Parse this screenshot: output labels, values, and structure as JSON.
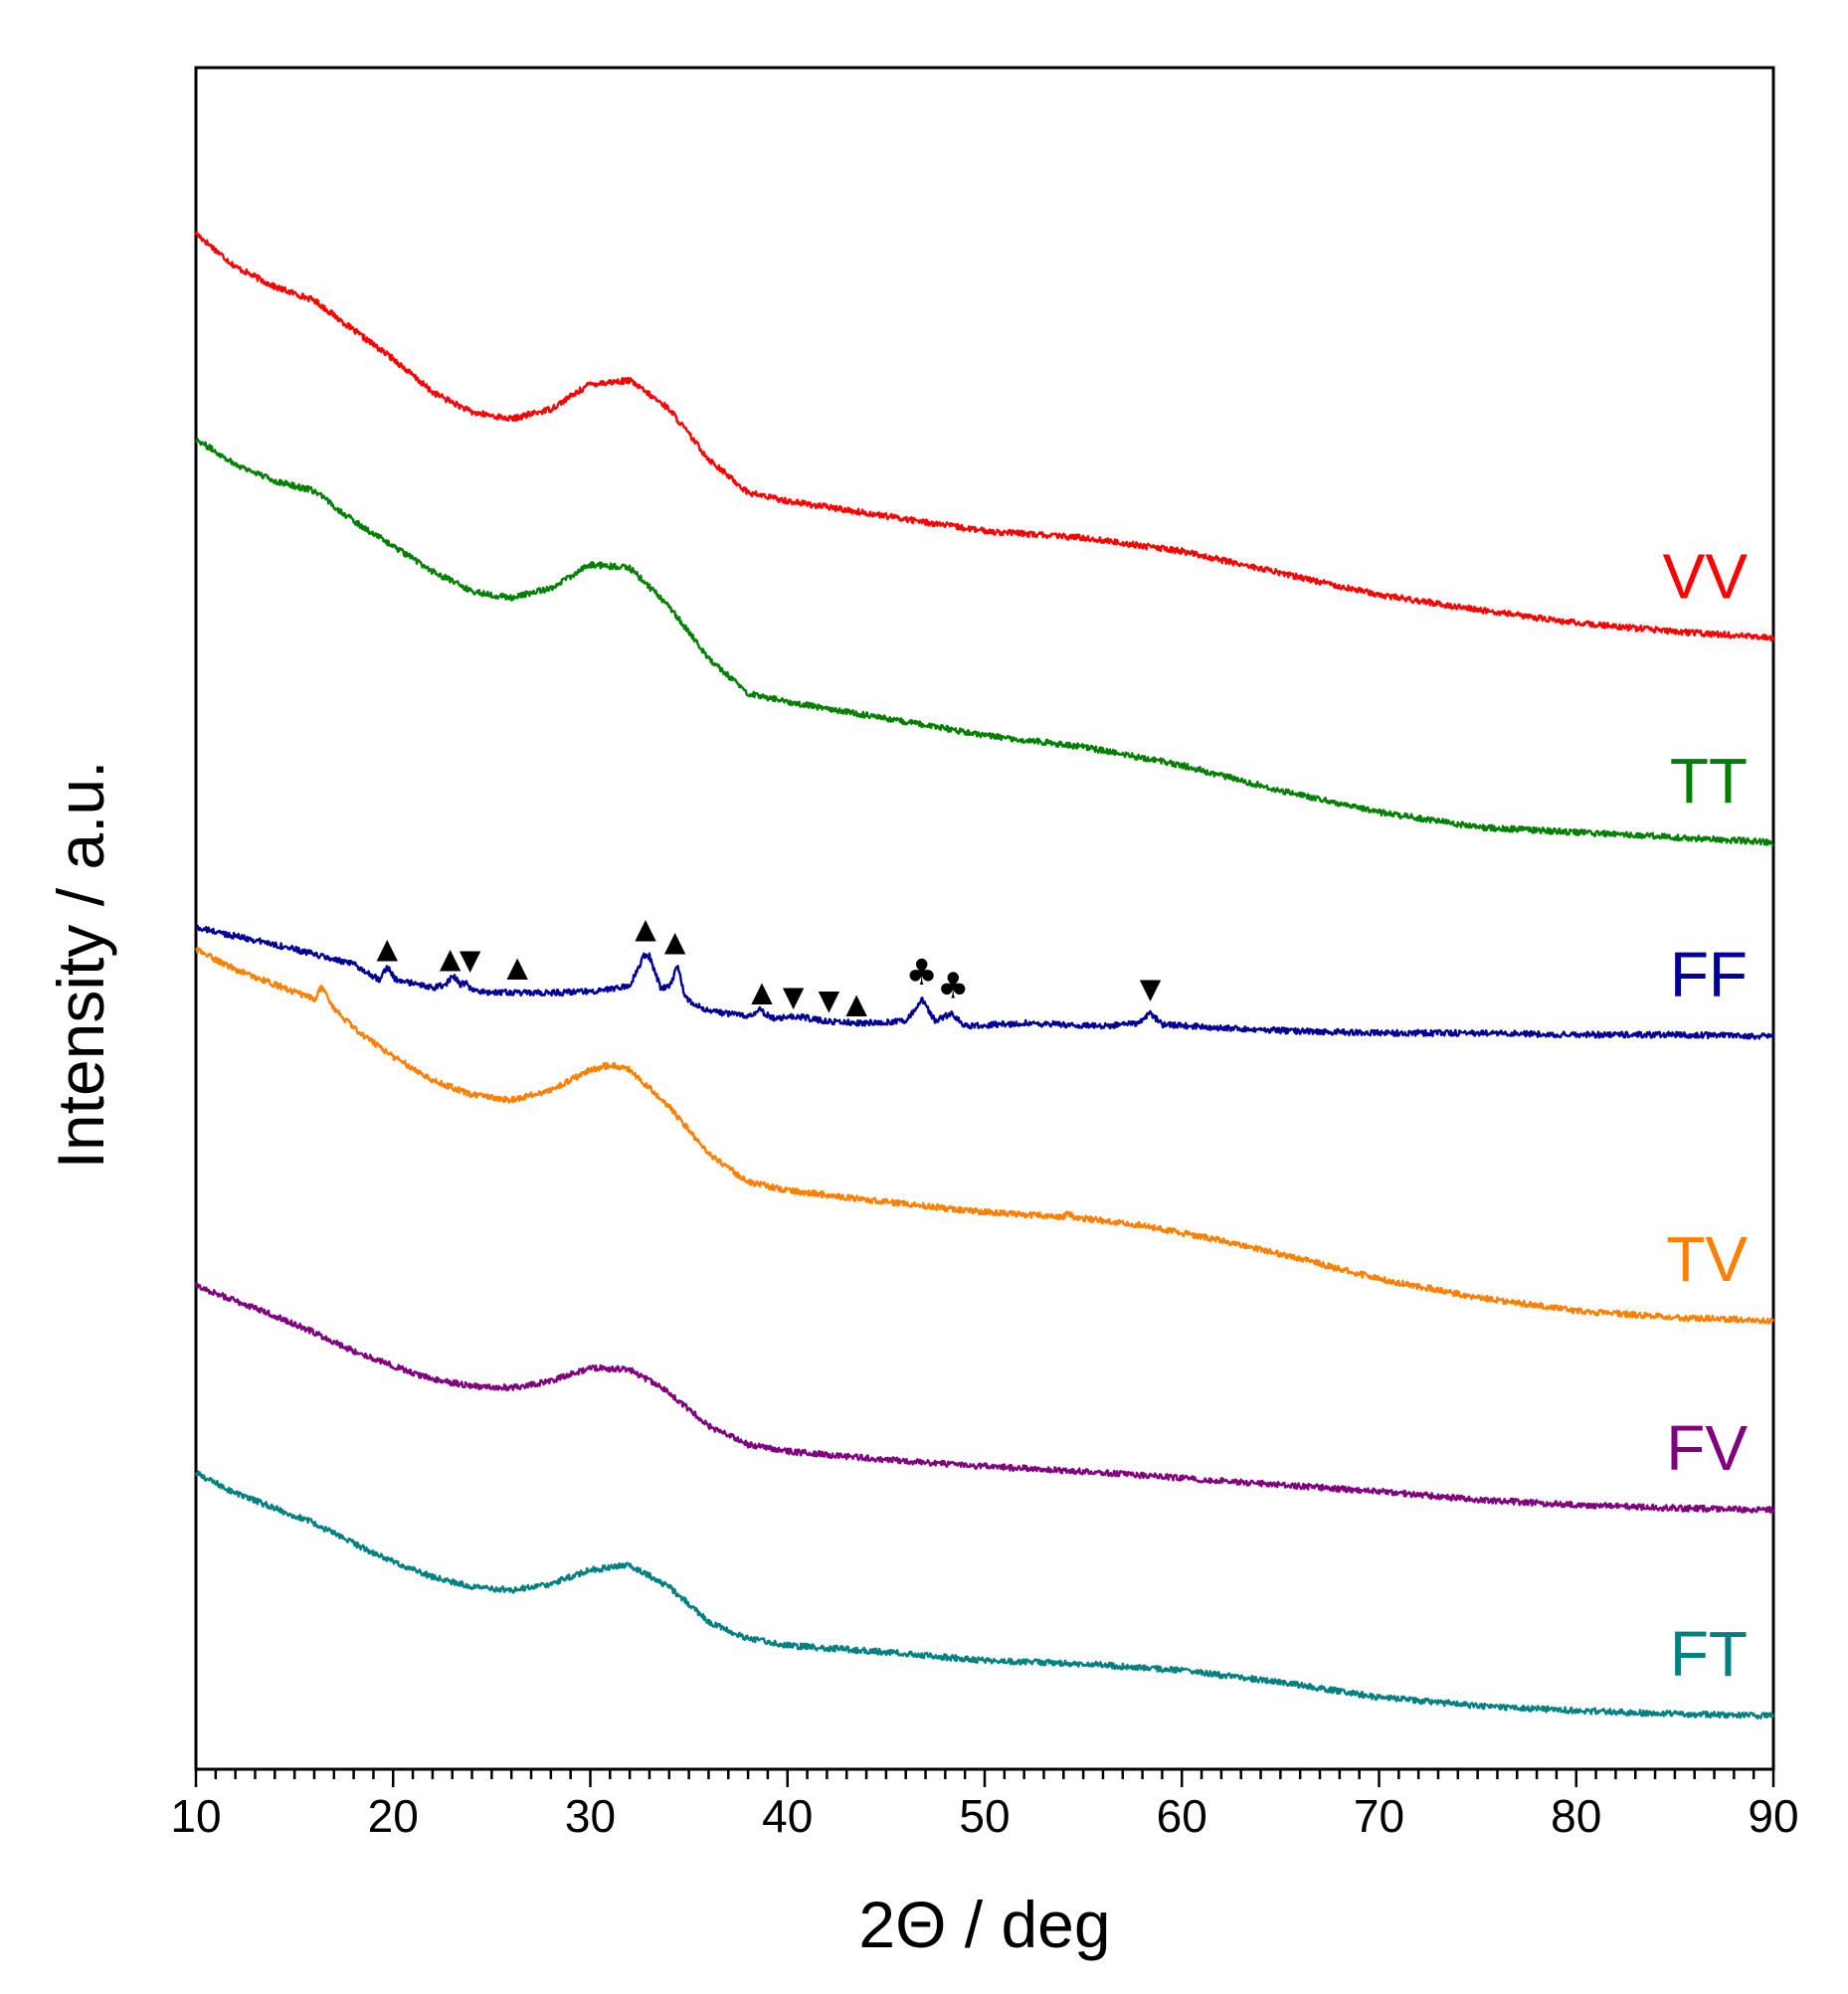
{
  "chart_data": {
    "type": "line",
    "xlabel": "2Θ / deg",
    "ylabel": "Intensity / a.u.",
    "xlim": [
      10,
      90
    ],
    "xticks": [
      10,
      20,
      30,
      40,
      50,
      60,
      70,
      80,
      90
    ],
    "yticks": [],
    "y_units": "a.u. (arbitrary units, vertically offset stack)",
    "grid": false,
    "series": [
      {
        "name": "VV",
        "color": "#ff0000",
        "points": [
          [
            10,
            6.3
          ],
          [
            12,
            6.1
          ],
          [
            14,
            5.98
          ],
          [
            16,
            5.9
          ],
          [
            18,
            5.72
          ],
          [
            20,
            5.55
          ],
          [
            22,
            5.35
          ],
          [
            24,
            5.23
          ],
          [
            26,
            5.19
          ],
          [
            28,
            5.25
          ],
          [
            30,
            5.4
          ],
          [
            32,
            5.42
          ],
          [
            34,
            5.25
          ],
          [
            36,
            4.95
          ],
          [
            38,
            4.75
          ],
          [
            40,
            4.7
          ],
          [
            45,
            4.61
          ],
          [
            50,
            4.52
          ],
          [
            55,
            4.48
          ],
          [
            60,
            4.4
          ],
          [
            65,
            4.27
          ],
          [
            70,
            4.14
          ],
          [
            75,
            4.05
          ],
          [
            80,
            3.97
          ],
          [
            85,
            3.92
          ],
          [
            90,
            3.88
          ]
        ]
      },
      {
        "name": "TT",
        "color": "#008000",
        "points": [
          [
            10,
            5.07
          ],
          [
            12,
            4.92
          ],
          [
            14,
            4.82
          ],
          [
            16,
            4.76
          ],
          [
            18,
            4.58
          ],
          [
            20,
            4.43
          ],
          [
            22,
            4.28
          ],
          [
            24,
            4.16
          ],
          [
            26,
            4.12
          ],
          [
            28,
            4.18
          ],
          [
            30,
            4.32
          ],
          [
            32,
            4.3
          ],
          [
            34,
            4.07
          ],
          [
            36,
            3.76
          ],
          [
            38,
            3.55
          ],
          [
            40,
            3.5
          ],
          [
            45,
            3.4
          ],
          [
            50,
            3.3
          ],
          [
            55,
            3.23
          ],
          [
            60,
            3.12
          ],
          [
            65,
            2.97
          ],
          [
            70,
            2.84
          ],
          [
            75,
            2.75
          ],
          [
            80,
            2.72
          ],
          [
            85,
            2.69
          ],
          [
            90,
            2.66
          ]
        ]
      },
      {
        "name": "FF",
        "color": "#000099",
        "points": [
          [
            10,
            2.15
          ],
          [
            14,
            2.05
          ],
          [
            18,
            1.93
          ],
          [
            19.3,
            1.84
          ],
          [
            19.7,
            1.92
          ],
          [
            20.1,
            1.84
          ],
          [
            22,
            1.79
          ],
          [
            22.7,
            1.81
          ],
          [
            23.0,
            1.87
          ],
          [
            23.4,
            1.81
          ],
          [
            23.7,
            1.82
          ],
          [
            24.0,
            1.77
          ],
          [
            26,
            1.76
          ],
          [
            28,
            1.76
          ],
          [
            30,
            1.77
          ],
          [
            32,
            1.8
          ],
          [
            32.7,
            1.98
          ],
          [
            33.0,
            1.98
          ],
          [
            33.6,
            1.78
          ],
          [
            34.1,
            1.81
          ],
          [
            34.4,
            1.93
          ],
          [
            34.8,
            1.73
          ],
          [
            36,
            1.65
          ],
          [
            38,
            1.62
          ],
          [
            38.6,
            1.66
          ],
          [
            39.2,
            1.61
          ],
          [
            40.5,
            1.62
          ],
          [
            42,
            1.59
          ],
          [
            44,
            1.58
          ],
          [
            46,
            1.59
          ],
          [
            46.8,
            1.72
          ],
          [
            47.5,
            1.59
          ],
          [
            48.3,
            1.64
          ],
          [
            49.0,
            1.56
          ],
          [
            52,
            1.58
          ],
          [
            56,
            1.56
          ],
          [
            57.8,
            1.58
          ],
          [
            58.4,
            1.64
          ],
          [
            59.0,
            1.57
          ],
          [
            62,
            1.55
          ],
          [
            66,
            1.53
          ],
          [
            70,
            1.52
          ],
          [
            75,
            1.52
          ],
          [
            80,
            1.51
          ],
          [
            85,
            1.51
          ],
          [
            90,
            1.5
          ]
        ]
      },
      {
        "name": "TV",
        "color": "#ff8000",
        "points": [
          [
            10,
            2.02
          ],
          [
            12,
            1.9
          ],
          [
            14,
            1.81
          ],
          [
            16,
            1.72
          ],
          [
            16.4,
            1.8
          ],
          [
            16.9,
            1.68
          ],
          [
            18,
            1.55
          ],
          [
            20,
            1.38
          ],
          [
            22,
            1.24
          ],
          [
            24,
            1.15
          ],
          [
            26,
            1.12
          ],
          [
            28,
            1.18
          ],
          [
            30,
            1.3
          ],
          [
            31,
            1.33
          ],
          [
            32,
            1.3
          ],
          [
            34,
            1.08
          ],
          [
            36,
            0.8
          ],
          [
            38,
            0.63
          ],
          [
            40,
            0.58
          ],
          [
            45,
            0.51
          ],
          [
            50,
            0.45
          ],
          [
            54,
            0.42
          ],
          [
            54.2,
            0.45
          ],
          [
            54.5,
            0.42
          ],
          [
            58,
            0.37
          ],
          [
            62,
            0.28
          ],
          [
            66,
            0.17
          ],
          [
            70,
            0.05
          ],
          [
            75,
            -0.06
          ],
          [
            80,
            -0.14
          ],
          [
            85,
            -0.18
          ],
          [
            90,
            -0.2
          ]
        ]
      },
      {
        "name": "FV",
        "color": "#800080",
        "points": [
          [
            10,
            0.01
          ],
          [
            12,
            -0.08
          ],
          [
            14,
            -0.17
          ],
          [
            16,
            -0.27
          ],
          [
            18,
            -0.38
          ],
          [
            20,
            -0.47
          ],
          [
            22,
            -0.55
          ],
          [
            24,
            -0.59
          ],
          [
            26,
            -0.6
          ],
          [
            28,
            -0.56
          ],
          [
            30,
            -0.48
          ],
          [
            32,
            -0.49
          ],
          [
            34,
            -0.63
          ],
          [
            36,
            -0.83
          ],
          [
            38,
            -0.94
          ],
          [
            40,
            -0.98
          ],
          [
            45,
            -1.03
          ],
          [
            50,
            -1.07
          ],
          [
            55,
            -1.1
          ],
          [
            60,
            -1.14
          ],
          [
            65,
            -1.18
          ],
          [
            70,
            -1.22
          ],
          [
            75,
            -1.27
          ],
          [
            80,
            -1.3
          ],
          [
            85,
            -1.32
          ],
          [
            90,
            -1.33
          ]
        ]
      },
      {
        "name": "FT",
        "color": "#008080",
        "points": [
          [
            10,
            -1.11
          ],
          [
            12,
            -1.23
          ],
          [
            14,
            -1.32
          ],
          [
            16,
            -1.41
          ],
          [
            18,
            -1.53
          ],
          [
            20,
            -1.64
          ],
          [
            22,
            -1.73
          ],
          [
            24,
            -1.79
          ],
          [
            26,
            -1.81
          ],
          [
            28,
            -1.77
          ],
          [
            30,
            -1.69
          ],
          [
            32,
            -1.66
          ],
          [
            34,
            -1.79
          ],
          [
            36,
            -2.0
          ],
          [
            38,
            -2.1
          ],
          [
            40,
            -2.14
          ],
          [
            45,
            -2.18
          ],
          [
            50,
            -2.23
          ],
          [
            55,
            -2.25
          ],
          [
            60,
            -2.29
          ],
          [
            65,
            -2.36
          ],
          [
            70,
            -2.45
          ],
          [
            75,
            -2.5
          ],
          [
            80,
            -2.53
          ],
          [
            85,
            -2.55
          ],
          [
            90,
            -2.56
          ]
        ]
      }
    ],
    "annotations": [
      {
        "symbol": "▲",
        "x": 19.7,
        "y": 2.03,
        "series": "FF"
      },
      {
        "symbol": "▲",
        "x": 22.9,
        "y": 1.97,
        "series": "FF"
      },
      {
        "symbol": "▼",
        "x": 23.9,
        "y": 1.96,
        "series": "FF"
      },
      {
        "symbol": "▲",
        "x": 26.3,
        "y": 1.92,
        "series": "FF"
      },
      {
        "symbol": "▲",
        "x": 32.8,
        "y": 2.15,
        "series": "FF"
      },
      {
        "symbol": "▲",
        "x": 34.3,
        "y": 2.07,
        "series": "FF"
      },
      {
        "symbol": "▲",
        "x": 38.7,
        "y": 1.77,
        "series": "FF"
      },
      {
        "symbol": "▼",
        "x": 40.3,
        "y": 1.74,
        "series": "FF"
      },
      {
        "symbol": "▼",
        "x": 42.1,
        "y": 1.72,
        "series": "FF"
      },
      {
        "symbol": "▲",
        "x": 43.5,
        "y": 1.7,
        "series": "FF"
      },
      {
        "symbol": "♣",
        "x": 46.8,
        "y": 1.87,
        "series": "FF"
      },
      {
        "symbol": "♣",
        "x": 48.4,
        "y": 1.79,
        "series": "FF"
      },
      {
        "symbol": "▼",
        "x": 58.4,
        "y": 1.79,
        "series": "FF"
      }
    ]
  }
}
